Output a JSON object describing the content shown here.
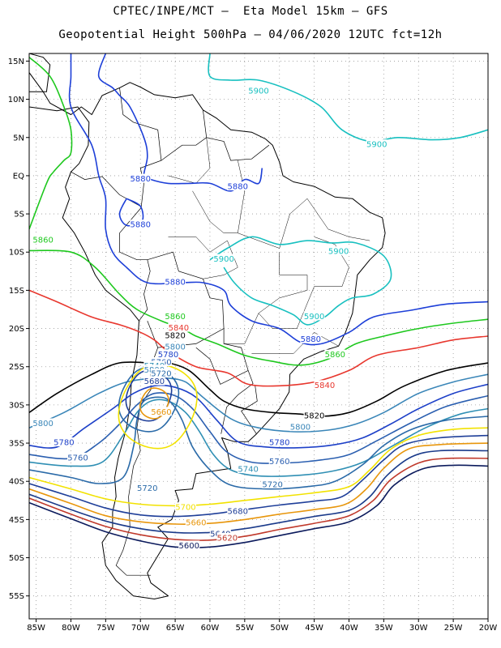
{
  "header": {
    "line1": "CPTEC/INPE/MCT –  Eta Model 15km – GFS",
    "line2": "Geopotential Height 500hPa – 04/06/2020 12UTC fct=12h"
  },
  "map": {
    "lon_range": [
      -86,
      -20
    ],
    "lat_range": [
      -58,
      16
    ],
    "lon_ticks": [
      -85,
      -80,
      -75,
      -70,
      -65,
      -60,
      -55,
      -50,
      -45,
      -40,
      -35,
      -30,
      -25,
      -20
    ],
    "lon_tick_labels": [
      "85W",
      "80W",
      "75W",
      "70W",
      "65W",
      "60W",
      "55W",
      "50W",
      "45W",
      "40W",
      "35W",
      "30W",
      "25W",
      "20W"
    ],
    "lat_ticks": [
      15,
      10,
      5,
      0,
      -5,
      -10,
      -15,
      -20,
      -25,
      -30,
      -35,
      -40,
      -45,
      -50,
      -55
    ],
    "lat_tick_labels": [
      "15N",
      "10N",
      "5N",
      "EQ",
      "5S",
      "10S",
      "15S",
      "20S",
      "25S",
      "30S",
      "35S",
      "40S",
      "45S",
      "50S",
      "55S"
    ],
    "gridlines": "dotted",
    "contour_colors": {
      "5600": "#0b1a5c",
      "5620": "#c0392b",
      "5640": "#1a3a8a",
      "5660": "#e8960c",
      "5680": "#1f3f99",
      "5700": "#f2e200",
      "5720": "#2a6aa8",
      "5740": "#2f8fb4",
      "5760": "#2b5fb0",
      "5780": "#1d40c8",
      "5800": "#3a86b8",
      "5820": "#000000",
      "5840": "#e8372e",
      "5860": "#1ec81e",
      "5880": "#1d3fd8",
      "5900": "#18c0c0"
    },
    "contour_labels": [
      {
        "text": "5900",
        "lon": -53,
        "lat": 11
      },
      {
        "text": "5900",
        "lon": -36,
        "lat": 4
      },
      {
        "text": "5880",
        "lon": -70,
        "lat": -0.5
      },
      {
        "text": "5880",
        "lon": -56,
        "lat": -1.5
      },
      {
        "text": "5880",
        "lon": -70,
        "lat": -6.5
      },
      {
        "text": "5860",
        "lon": -84,
        "lat": -8.5
      },
      {
        "text": "5900",
        "lon": -58,
        "lat": -11
      },
      {
        "text": "5900",
        "lon": -41.5,
        "lat": -10
      },
      {
        "text": "5880",
        "lon": -65,
        "lat": -14
      },
      {
        "text": "5860",
        "lon": -65,
        "lat": -18.5
      },
      {
        "text": "5900",
        "lon": -45,
        "lat": -18.5
      },
      {
        "text": "5840",
        "lon": -64.5,
        "lat": -20
      },
      {
        "text": "5880",
        "lon": -45.5,
        "lat": -21.5
      },
      {
        "text": "5820",
        "lon": -65,
        "lat": -21
      },
      {
        "text": "5800",
        "lon": -65,
        "lat": -22.5
      },
      {
        "text": "5860",
        "lon": -42,
        "lat": -23.5
      },
      {
        "text": "5780",
        "lon": -66,
        "lat": -23.5
      },
      {
        "text": "5760",
        "lon": -67,
        "lat": -24.5
      },
      {
        "text": "5740",
        "lon": -68,
        "lat": -25
      },
      {
        "text": "5800",
        "lon": -68,
        "lat": -25.5
      },
      {
        "text": "5720",
        "lon": -67,
        "lat": -26
      },
      {
        "text": "5680",
        "lon": -68,
        "lat": -27
      },
      {
        "text": "5840",
        "lon": -43.5,
        "lat": -27.5
      },
      {
        "text": "5660",
        "lon": -67,
        "lat": -31
      },
      {
        "text": "5820",
        "lon": -45,
        "lat": -31.5
      },
      {
        "text": "5800",
        "lon": -84,
        "lat": -32.5
      },
      {
        "text": "5800",
        "lon": -47,
        "lat": -33
      },
      {
        "text": "5780",
        "lon": -81,
        "lat": -35
      },
      {
        "text": "5780",
        "lon": -50,
        "lat": -35
      },
      {
        "text": "5760",
        "lon": -79,
        "lat": -37
      },
      {
        "text": "5760",
        "lon": -50,
        "lat": -37.5
      },
      {
        "text": "5740",
        "lon": -54.5,
        "lat": -38.5
      },
      {
        "text": "5720",
        "lon": -69,
        "lat": -41
      },
      {
        "text": "5720",
        "lon": -51,
        "lat": -40.5
      },
      {
        "text": "5700",
        "lon": -63.5,
        "lat": -43.5
      },
      {
        "text": "5680",
        "lon": -56,
        "lat": -44
      },
      {
        "text": "5660",
        "lon": -62,
        "lat": -45.5
      },
      {
        "text": "5640",
        "lon": -58.5,
        "lat": -47
      },
      {
        "text": "5620",
        "lon": -57.5,
        "lat": -47.5
      },
      {
        "text": "5600",
        "lon": -63,
        "lat": -48.5
      }
    ]
  }
}
